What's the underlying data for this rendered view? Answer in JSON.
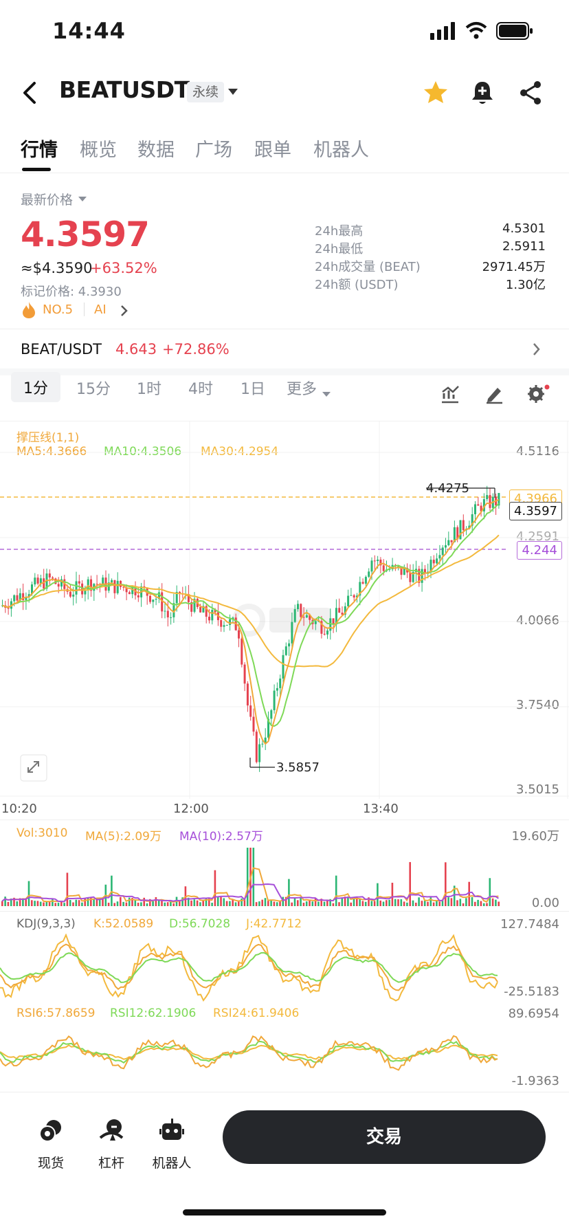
{
  "status": {
    "time": "14:44"
  },
  "header": {
    "pair": "BEATUSDT",
    "contract_type": "永续"
  },
  "tabs": [
    "行情",
    "概览",
    "数据",
    "广场",
    "跟单",
    "机器人"
  ],
  "ticker": {
    "latest_label": "最新价格",
    "last_price": "4.3597",
    "usd_price": "≈$4.3590",
    "change_pct": "+63.52%",
    "mark_price": "标记价格: 4.3930",
    "rank": "NO.5",
    "tag": "AI",
    "stats": [
      {
        "label": "24h最高",
        "value": "4.5301"
      },
      {
        "label": "24h最低",
        "value": "2.5911"
      },
      {
        "label": "24h成交量 (BEAT)",
        "value": "2971.45万"
      },
      {
        "label": "24h额 (USDT)",
        "value": "1.30亿"
      }
    ],
    "spot": {
      "pair": "BEAT/USDT",
      "price": "4.643",
      "change": "+72.86%"
    }
  },
  "intervals": [
    "1分",
    "15分",
    "1时",
    "4时",
    "1日",
    "更多"
  ],
  "main_chart": {
    "indicator_title": "撑压线(1,1)",
    "ma5": "MA5:4.3666",
    "ma10": "MA10:4.3506",
    "ma30": "MA30:4.2954",
    "y_axis": [
      "4.5116",
      "4.2591",
      "4.0066",
      "3.7540",
      "3.5015"
    ],
    "high_marker": "4.4275",
    "low_marker": "3.5857",
    "tag_ma": "4.3966",
    "tag_last": "4.3597",
    "tag_support": "4.244",
    "x_axis": [
      "10:20",
      "12:00",
      "13:40"
    ]
  },
  "volume": {
    "vol": "Vol:3010",
    "ma5": "MA(5):2.09万",
    "ma10": "MA(10):2.57万",
    "top": "19.60万",
    "bottom": "0.00"
  },
  "kdj": {
    "title": "KDJ(9,3,3)",
    "k": "K:52.0589",
    "d": "D:56.7028",
    "j": "J:42.7712",
    "top": "127.7484",
    "bottom": "-25.5183"
  },
  "rsi": {
    "rsi6": "RSI6:57.8659",
    "rsi12": "RSI12:62.1906",
    "rsi24": "RSI24:61.9406",
    "top": "89.6954",
    "bottom": "-1.9363"
  },
  "bottom_nav": {
    "spot": "现货",
    "margin": "杠杆",
    "bot": "机器人",
    "trade": "交易"
  },
  "colors": {
    "up": "#2bb673",
    "down": "#e5424f",
    "ma5": "#f0a83a",
    "ma10": "#7ed957",
    "ma30": "#f3b93d",
    "purple": "#a64fd9"
  }
}
